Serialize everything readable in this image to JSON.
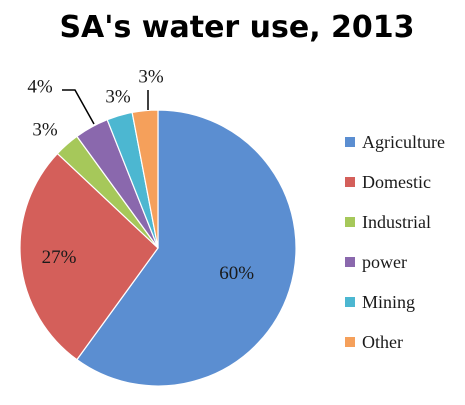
{
  "chart_data": {
    "type": "pie",
    "title": "SA's water use, 2013",
    "legend_position": "right",
    "categories": [
      "Agriculture",
      "Domestic",
      "Industrial",
      "power",
      "Mining",
      "Other"
    ],
    "values": [
      60,
      27,
      3,
      4,
      3,
      3
    ],
    "data_labels": [
      "60%",
      "27%",
      "3%",
      "4%",
      "3%",
      "3%"
    ],
    "colors": [
      "#5b8ed1",
      "#d45f5a",
      "#a6c85a",
      "#8a68ad",
      "#4cb7d1",
      "#f5a05b"
    ]
  }
}
